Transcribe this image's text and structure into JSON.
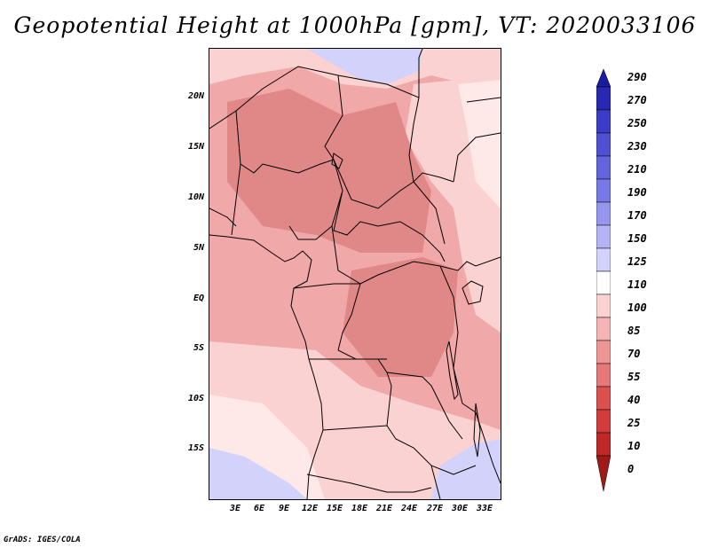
{
  "title": "Geopotential Height at 1000hPa [gpm], VT: 2020033106",
  "credit": "GrADS: IGES/COLA",
  "y_ticks": [
    "20N",
    "15N",
    "10N",
    "5N",
    "EQ",
    "5S",
    "10S",
    "15S"
  ],
  "x_ticks": [
    "3E",
    "6E",
    "9E",
    "12E",
    "15E",
    "18E",
    "21E",
    "24E",
    "27E",
    "30E",
    "33E"
  ],
  "colorbar": {
    "labels": [
      "290",
      "270",
      "250",
      "230",
      "210",
      "190",
      "170",
      "150",
      "125",
      "110",
      "100",
      "85",
      "70",
      "55",
      "40",
      "25",
      "10",
      "0"
    ],
    "colors": [
      "#1a1aa0",
      "#2828b4",
      "#3c3cc8",
      "#5050d2",
      "#6464dc",
      "#7878e6",
      "#9696ee",
      "#b4b4f4",
      "#d2d2fa",
      "#ffffff",
      "#fad2d2",
      "#f4b4b4",
      "#ee9696",
      "#e67878",
      "#dc5050",
      "#d23c3c",
      "#c02828",
      "#a01a1a"
    ]
  },
  "field_colors": {
    "low": "#e08888",
    "mid": "#f0a8a8",
    "high": "#fad2d2",
    "higher": "#ffe8e8",
    "blue": "#d2d2fa"
  }
}
